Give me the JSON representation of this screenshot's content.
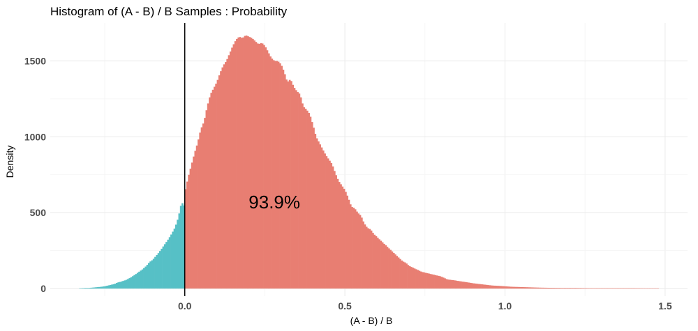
{
  "chart_data": {
    "type": "bar",
    "title": "Histogram of (A - B) / B Samples : Probability",
    "xlabel": "(A - B) / B",
    "ylabel": "Density",
    "xlim": [
      -0.42,
      1.57
    ],
    "ylim": [
      -50,
      1750
    ],
    "x_ticks": [
      0.0,
      0.5,
      1.0,
      1.5
    ],
    "x_tick_labels": [
      "0.0",
      "0.5",
      "1.0",
      "1.5"
    ],
    "y_ticks": [
      0,
      500,
      1000,
      1500
    ],
    "y_tick_labels": [
      "0",
      "500",
      "1000",
      "1500"
    ],
    "vline_x": 0.0,
    "annotation": {
      "text": "93.9%",
      "x": 0.28,
      "y": 570
    },
    "grid": true,
    "bin_width": 0.005,
    "colors": {
      "negative": "#56c0c6",
      "positive": "#e87e72",
      "vline": "#000000"
    },
    "series": [
      {
        "color": "#56c0c6",
        "x": [
          -0.33,
          -0.32,
          -0.31,
          -0.3,
          -0.29,
          -0.28,
          -0.27,
          -0.26,
          -0.25,
          -0.24,
          -0.23,
          -0.22,
          -0.21,
          -0.2,
          -0.19,
          -0.18,
          -0.17,
          -0.16,
          -0.15,
          -0.14,
          -0.13,
          -0.12,
          -0.11,
          -0.1,
          -0.09,
          -0.08,
          -0.07,
          -0.06,
          -0.05,
          -0.04,
          -0.03,
          -0.02,
          -0.01,
          0.0
        ],
        "values": [
          2,
          3,
          4,
          4,
          6,
          8,
          10,
          12,
          15,
          20,
          25,
          30,
          40,
          45,
          52,
          60,
          72,
          85,
          100,
          115,
          130,
          150,
          175,
          190,
          215,
          240,
          270,
          300,
          330,
          365,
          405,
          470,
          570,
          540
        ]
      },
      {
        "color": "#e87e72",
        "x": [
          0.0,
          0.01,
          0.02,
          0.03,
          0.04,
          0.05,
          0.06,
          0.07,
          0.08,
          0.09,
          0.1,
          0.11,
          0.12,
          0.13,
          0.14,
          0.15,
          0.16,
          0.17,
          0.18,
          0.19,
          0.2,
          0.21,
          0.22,
          0.23,
          0.24,
          0.25,
          0.26,
          0.27,
          0.28,
          0.29,
          0.3,
          0.31,
          0.32,
          0.33,
          0.34,
          0.35,
          0.36,
          0.37,
          0.38,
          0.39,
          0.4,
          0.41,
          0.42,
          0.43,
          0.44,
          0.45,
          0.46,
          0.47,
          0.48,
          0.49,
          0.5,
          0.51,
          0.52,
          0.53,
          0.54,
          0.55,
          0.56,
          0.57,
          0.58,
          0.59,
          0.6,
          0.61,
          0.62,
          0.63,
          0.64,
          0.65,
          0.66,
          0.67,
          0.68,
          0.69,
          0.7,
          0.72,
          0.74,
          0.76,
          0.78,
          0.8,
          0.82,
          0.84,
          0.86,
          0.88,
          0.9,
          0.92,
          0.94,
          0.96,
          0.98,
          1.0,
          1.02,
          1.05,
          1.08,
          1.11,
          1.14,
          1.18,
          1.22,
          1.26,
          1.3,
          1.35,
          1.4,
          1.45,
          1.48
        ],
        "values": [
          630,
          730,
          810,
          890,
          960,
          1050,
          1100,
          1200,
          1280,
          1320,
          1360,
          1420,
          1470,
          1500,
          1550,
          1600,
          1640,
          1660,
          1650,
          1670,
          1660,
          1650,
          1630,
          1610,
          1620,
          1600,
          1560,
          1520,
          1500,
          1500,
          1480,
          1430,
          1360,
          1380,
          1330,
          1300,
          1280,
          1200,
          1180,
          1150,
          1080,
          1000,
          960,
          920,
          880,
          850,
          820,
          760,
          710,
          680,
          650,
          600,
          540,
          530,
          500,
          480,
          430,
          400,
          390,
          360,
          340,
          320,
          300,
          280,
          260,
          240,
          220,
          200,
          180,
          170,
          150,
          130,
          110,
          100,
          90,
          80,
          60,
          55,
          48,
          42,
          35,
          30,
          25,
          20,
          18,
          15,
          12,
          10,
          8,
          6,
          5,
          4,
          4,
          3,
          3,
          3,
          3,
          2,
          2
        ]
      }
    ]
  }
}
